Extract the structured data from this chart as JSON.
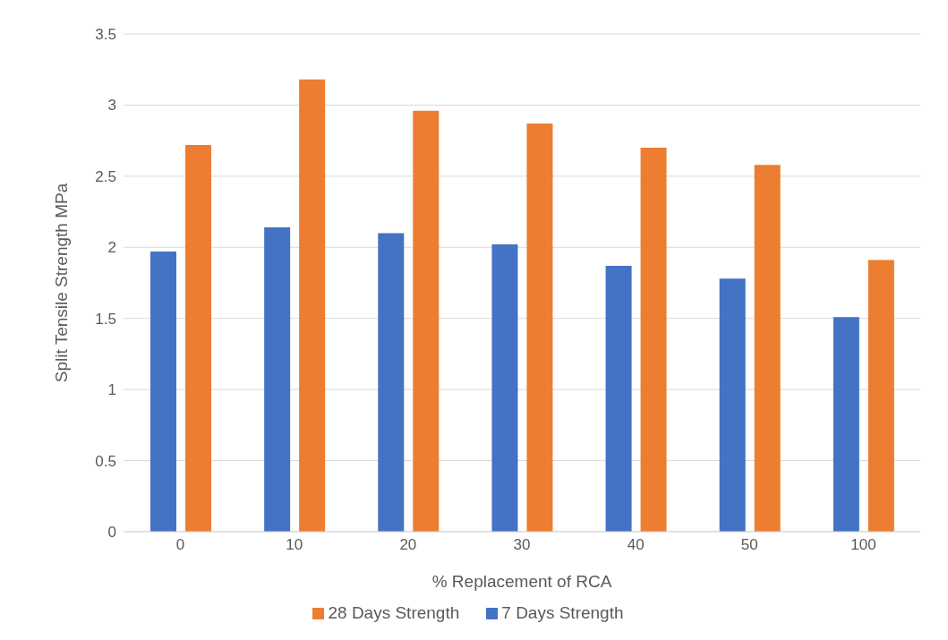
{
  "chart_data": {
    "type": "bar",
    "xlabel": "% Replacement of RCA",
    "ylabel": "Split Tensile Strength MPa",
    "categories": [
      "0",
      "10",
      "20",
      "30",
      "40",
      "50",
      "100"
    ],
    "series": [
      {
        "name": "7 Days Strength",
        "color": "#4472c4",
        "values": [
          1.97,
          2.14,
          2.1,
          2.02,
          1.87,
          1.78,
          1.51
        ]
      },
      {
        "name": "28 Days Strength",
        "color": "#ed7d31",
        "values": [
          2.72,
          3.18,
          2.96,
          2.87,
          2.7,
          2.58,
          1.91
        ]
      }
    ],
    "ylim": [
      0,
      3.5
    ],
    "yticks": [
      0,
      0.5,
      1,
      1.5,
      2,
      2.5,
      3,
      3.5
    ],
    "grid": "y",
    "legend": "bottom"
  }
}
